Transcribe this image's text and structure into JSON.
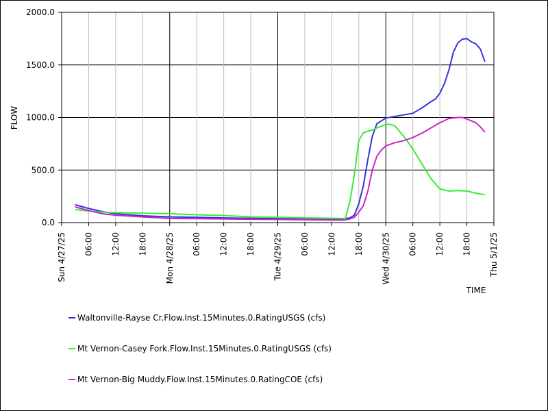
{
  "chart_data": {
    "type": "line",
    "xlabel": "TIME",
    "ylabel": "FLOW",
    "x_range": [
      "2025-04-27T00:00",
      "2025-05-01T00:00"
    ],
    "ylim": [
      0,
      2000
    ],
    "y_ticks": [
      "0.0",
      "500.0",
      "1000.0",
      "1500.0",
      "2000.0"
    ],
    "y_tick_values": [
      0,
      500,
      1000,
      1500,
      2000
    ],
    "x_ticks": [
      {
        "t": "2025-04-27T00:00",
        "label": "Sun 4/27/25",
        "major": true
      },
      {
        "t": "2025-04-27T06:00",
        "label": "06:00",
        "major": false
      },
      {
        "t": "2025-04-27T12:00",
        "label": "12:00",
        "major": false
      },
      {
        "t": "2025-04-27T18:00",
        "label": "18:00",
        "major": false
      },
      {
        "t": "2025-04-28T00:00",
        "label": "Mon 4/28/25",
        "major": true
      },
      {
        "t": "2025-04-28T06:00",
        "label": "06:00",
        "major": false
      },
      {
        "t": "2025-04-28T12:00",
        "label": "12:00",
        "major": false
      },
      {
        "t": "2025-04-28T18:00",
        "label": "18:00",
        "major": false
      },
      {
        "t": "2025-04-29T00:00",
        "label": "Tue 4/29/25",
        "major": true
      },
      {
        "t": "2025-04-29T06:00",
        "label": "06:00",
        "major": false
      },
      {
        "t": "2025-04-29T12:00",
        "label": "12:00",
        "major": false
      },
      {
        "t": "2025-04-29T18:00",
        "label": "18:00",
        "major": false
      },
      {
        "t": "2025-04-30T00:00",
        "label": "Wed 4/30/25",
        "major": true
      },
      {
        "t": "2025-04-30T06:00",
        "label": "06:00",
        "major": false
      },
      {
        "t": "2025-04-30T12:00",
        "label": "12:00",
        "major": false
      },
      {
        "t": "2025-04-30T18:00",
        "label": "18:00",
        "major": false
      },
      {
        "t": "2025-05-01T00:00",
        "label": "Thu 5/1/25",
        "major": true
      }
    ],
    "grid": true,
    "legend_position": "bottom",
    "series": [
      {
        "name": "Waltonville-Rayse Cr.Flow.Inst.15Minutes.0.RatingUSGS (cfs)",
        "color": "#3333dd",
        "points": [
          [
            "2025-04-27T03:00",
            170
          ],
          [
            "2025-04-27T06:00",
            135
          ],
          [
            "2025-04-27T09:00",
            105
          ],
          [
            "2025-04-27T12:00",
            85
          ],
          [
            "2025-04-27T15:00",
            75
          ],
          [
            "2025-04-27T18:00",
            65
          ],
          [
            "2025-04-28T00:00",
            55
          ],
          [
            "2025-04-28T06:00",
            50
          ],
          [
            "2025-04-28T12:00",
            45
          ],
          [
            "2025-04-28T18:00",
            42
          ],
          [
            "2025-04-29T00:00",
            40
          ],
          [
            "2025-04-29T06:00",
            38
          ],
          [
            "2025-04-29T12:00",
            35
          ],
          [
            "2025-04-29T14:00",
            33
          ],
          [
            "2025-04-29T16:00",
            45
          ],
          [
            "2025-04-29T17:00",
            70
          ],
          [
            "2025-04-29T18:00",
            180
          ],
          [
            "2025-04-29T19:00",
            350
          ],
          [
            "2025-04-29T20:00",
            600
          ],
          [
            "2025-04-29T21:00",
            820
          ],
          [
            "2025-04-29T22:00",
            940
          ],
          [
            "2025-04-30T00:00",
            995
          ],
          [
            "2025-04-30T02:00",
            1010
          ],
          [
            "2025-04-30T04:00",
            1025
          ],
          [
            "2025-04-30T06:00",
            1040
          ],
          [
            "2025-04-30T08:00",
            1090
          ],
          [
            "2025-04-30T10:00",
            1150
          ],
          [
            "2025-04-30T11:00",
            1175
          ],
          [
            "2025-04-30T12:00",
            1230
          ],
          [
            "2025-04-30T13:00",
            1320
          ],
          [
            "2025-04-30T14:00",
            1450
          ],
          [
            "2025-04-30T15:00",
            1620
          ],
          [
            "2025-04-30T16:00",
            1710
          ],
          [
            "2025-04-30T17:00",
            1745
          ],
          [
            "2025-04-30T18:00",
            1750
          ],
          [
            "2025-04-30T19:00",
            1720
          ],
          [
            "2025-04-30T20:00",
            1700
          ],
          [
            "2025-04-30T21:00",
            1650
          ],
          [
            "2025-04-30T22:00",
            1530
          ]
        ]
      },
      {
        "name": "Mt Vernon-Casey Fork.Flow.Inst.15Minutes.0.RatingUSGS (cfs)",
        "color": "#33ee33",
        "points": [
          [
            "2025-04-27T03:00",
            125
          ],
          [
            "2025-04-27T06:00",
            110
          ],
          [
            "2025-04-27T09:00",
            100
          ],
          [
            "2025-04-27T12:00",
            95
          ],
          [
            "2025-04-27T18:00",
            90
          ],
          [
            "2025-04-28T00:00",
            85
          ],
          [
            "2025-04-28T06:00",
            75
          ],
          [
            "2025-04-28T12:00",
            68
          ],
          [
            "2025-04-28T18:00",
            55
          ],
          [
            "2025-04-29T00:00",
            50
          ],
          [
            "2025-04-29T06:00",
            45
          ],
          [
            "2025-04-29T12:00",
            42
          ],
          [
            "2025-04-29T15:00",
            40
          ],
          [
            "2025-04-29T16:00",
            200
          ],
          [
            "2025-04-29T17:00",
            450
          ],
          [
            "2025-04-29T18:00",
            780
          ],
          [
            "2025-04-29T19:00",
            855
          ],
          [
            "2025-04-29T20:00",
            870
          ],
          [
            "2025-04-29T21:00",
            880
          ],
          [
            "2025-04-29T22:00",
            900
          ],
          [
            "2025-04-30T00:00",
            935
          ],
          [
            "2025-04-30T01:00",
            935
          ],
          [
            "2025-04-30T02:00",
            920
          ],
          [
            "2025-04-30T04:00",
            820
          ],
          [
            "2025-04-30T06:00",
            700
          ],
          [
            "2025-04-30T08:00",
            560
          ],
          [
            "2025-04-30T10:00",
            420
          ],
          [
            "2025-04-30T12:00",
            320
          ],
          [
            "2025-04-30T14:00",
            300
          ],
          [
            "2025-04-30T16:00",
            305
          ],
          [
            "2025-04-30T18:00",
            300
          ],
          [
            "2025-04-30T20:00",
            280
          ],
          [
            "2025-04-30T22:00",
            265
          ]
        ]
      },
      {
        "name": "Mt Vernon-Big Muddy.Flow.Inst.15Minutes.0.RatingCOE (cfs)",
        "color": "#cc22cc",
        "points": [
          [
            "2025-04-27T03:00",
            150
          ],
          [
            "2025-04-27T06:00",
            115
          ],
          [
            "2025-04-27T09:00",
            85
          ],
          [
            "2025-04-27T12:00",
            70
          ],
          [
            "2025-04-27T18:00",
            55
          ],
          [
            "2025-04-28T00:00",
            40
          ],
          [
            "2025-04-28T06:00",
            38
          ],
          [
            "2025-04-28T12:00",
            35
          ],
          [
            "2025-04-28T18:00",
            32
          ],
          [
            "2025-04-29T00:00",
            30
          ],
          [
            "2025-04-29T06:00",
            28
          ],
          [
            "2025-04-29T12:00",
            25
          ],
          [
            "2025-04-29T15:00",
            25
          ],
          [
            "2025-04-29T16:00",
            35
          ],
          [
            "2025-04-29T17:00",
            50
          ],
          [
            "2025-04-29T18:00",
            100
          ],
          [
            "2025-04-29T19:00",
            160
          ],
          [
            "2025-04-29T20:00",
            300
          ],
          [
            "2025-04-29T21:00",
            500
          ],
          [
            "2025-04-29T22:00",
            630
          ],
          [
            "2025-04-29T23:00",
            690
          ],
          [
            "2025-04-30T00:00",
            730
          ],
          [
            "2025-04-30T02:00",
            760
          ],
          [
            "2025-04-30T04:00",
            780
          ],
          [
            "2025-04-30T06:00",
            810
          ],
          [
            "2025-04-30T08:00",
            850
          ],
          [
            "2025-04-30T10:00",
            900
          ],
          [
            "2025-04-30T12:00",
            950
          ],
          [
            "2025-04-30T14:00",
            990
          ],
          [
            "2025-04-30T16:00",
            1000
          ],
          [
            "2025-04-30T17:00",
            1000
          ],
          [
            "2025-04-30T18:00",
            985
          ],
          [
            "2025-04-30T20:00",
            950
          ],
          [
            "2025-04-30T21:00",
            910
          ],
          [
            "2025-04-30T22:00",
            860
          ]
        ]
      }
    ]
  }
}
